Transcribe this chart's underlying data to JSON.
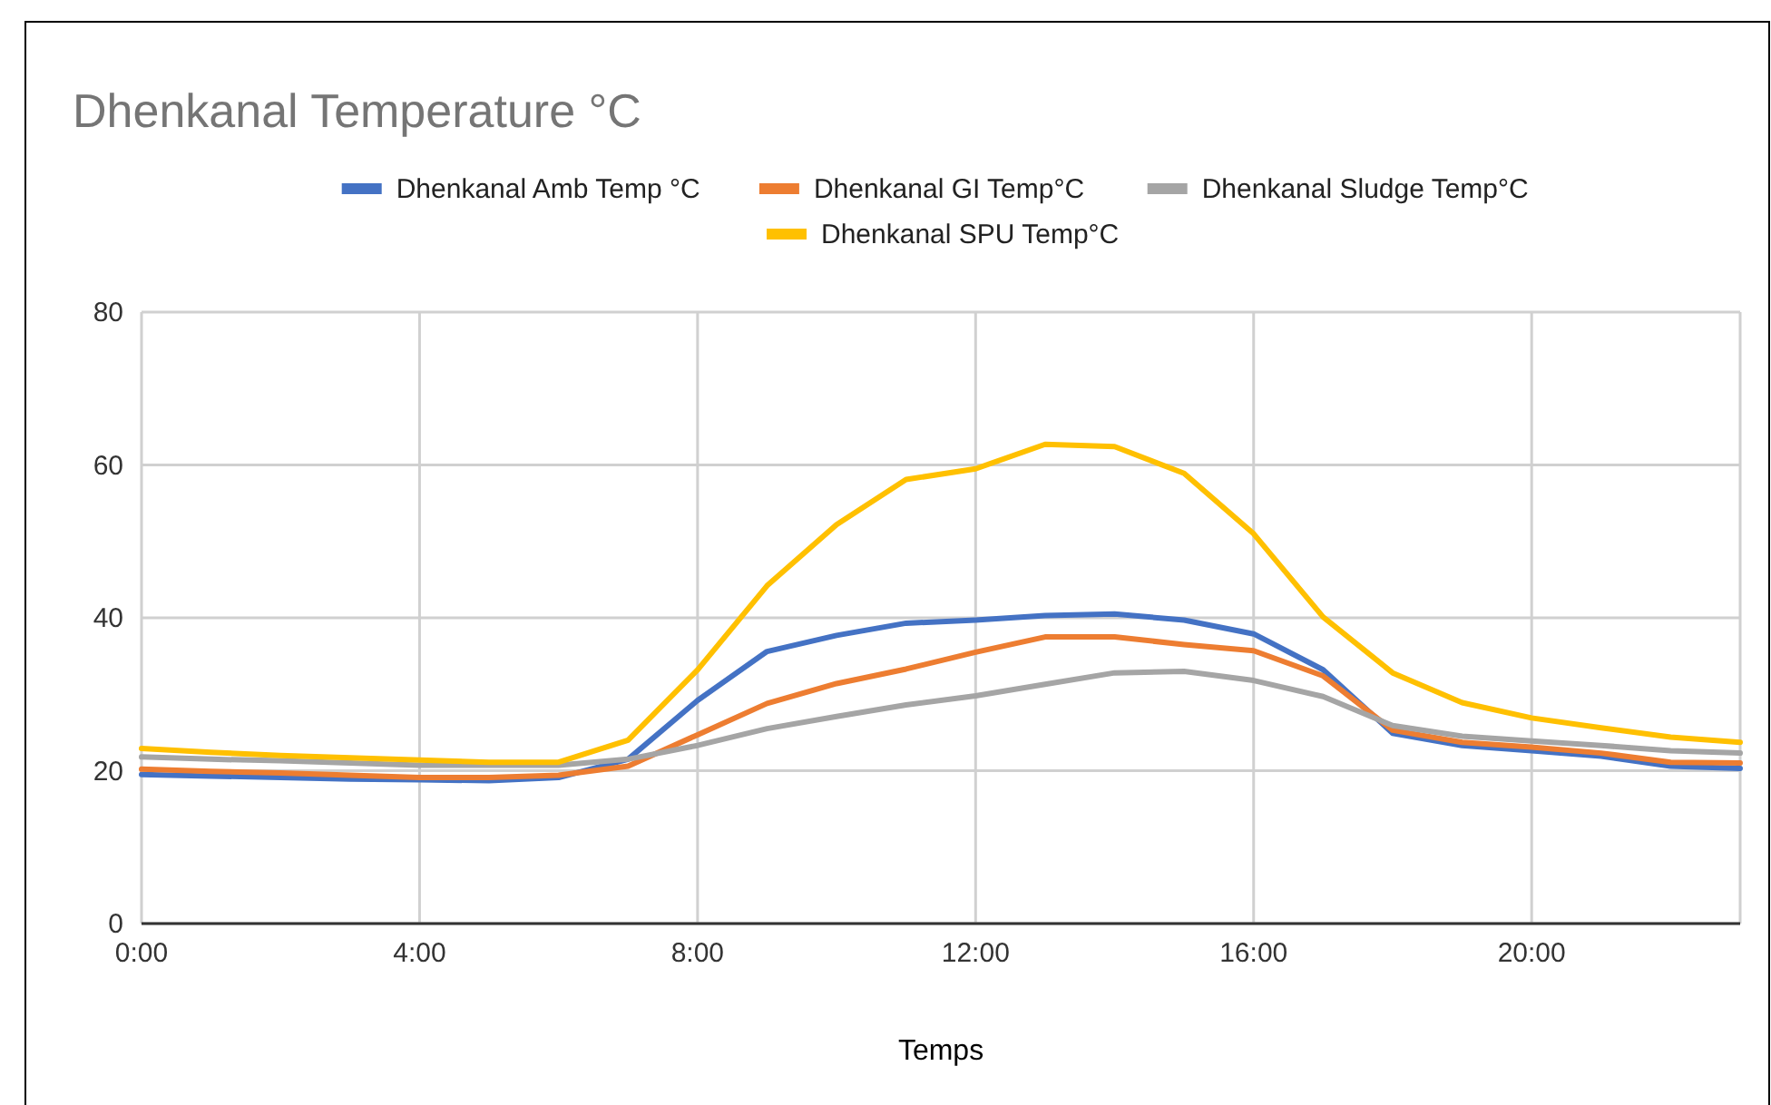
{
  "chart_data": {
    "type": "line",
    "title": "Dhenkanal Temperature °C",
    "xlabel": "Temps",
    "x": [
      0,
      1,
      2,
      3,
      4,
      5,
      6,
      7,
      8,
      9,
      10,
      11,
      12,
      13,
      14,
      15,
      16,
      17,
      18,
      19,
      20,
      21,
      22,
      23
    ],
    "xlim": [
      0,
      23
    ],
    "xticks": [
      {
        "value": 0,
        "label": "0:00"
      },
      {
        "value": 4,
        "label": "4:00"
      },
      {
        "value": 8,
        "label": "8:00"
      },
      {
        "value": 12,
        "label": "12:00"
      },
      {
        "value": 16,
        "label": "16:00"
      },
      {
        "value": 20,
        "label": "20:00"
      }
    ],
    "ylim": [
      0,
      80
    ],
    "yticks": [
      0,
      20,
      40,
      60,
      80
    ],
    "grid": true,
    "legend": "top",
    "marker": "none",
    "line_style": "solid",
    "series": [
      {
        "name": "Dhenkanal Amb Temp °C",
        "color": "#4472c4",
        "values": [
          19.5,
          19.3,
          19.1,
          18.9,
          18.8,
          18.7,
          19.1,
          21.5,
          29.2,
          35.6,
          37.7,
          39.3,
          39.7,
          40.3,
          40.5,
          39.7,
          37.9,
          33.2,
          24.9,
          23.3,
          22.6,
          21.9,
          20.6,
          20.3
        ]
      },
      {
        "name": "Dhenkanal GI Temp°C",
        "color": "#ed7d31",
        "values": [
          20.2,
          19.9,
          19.7,
          19.4,
          19.1,
          19.1,
          19.4,
          20.6,
          24.7,
          28.8,
          31.4,
          33.3,
          35.5,
          37.5,
          37.5,
          36.5,
          35.7,
          32.4,
          25.3,
          23.7,
          23.1,
          22.3,
          21.1,
          21.0
        ]
      },
      {
        "name": "Dhenkanal Sludge Temp°C",
        "color": "#a5a5a5",
        "values": [
          21.8,
          21.5,
          21.3,
          21.0,
          20.7,
          20.7,
          20.7,
          21.5,
          23.3,
          25.5,
          27.1,
          28.6,
          29.8,
          31.3,
          32.8,
          33.0,
          31.8,
          29.7,
          25.9,
          24.5,
          23.9,
          23.3,
          22.6,
          22.3
        ]
      },
      {
        "name": "Dhenkanal SPU Temp°C",
        "color": "#ffc000",
        "values": [
          22.9,
          22.4,
          22.0,
          21.7,
          21.4,
          21.1,
          21.1,
          24.0,
          33.2,
          44.2,
          52.2,
          58.1,
          59.5,
          62.7,
          62.4,
          58.9,
          51.0,
          40.1,
          32.8,
          28.9,
          26.9,
          25.6,
          24.4,
          23.7
        ]
      }
    ]
  }
}
